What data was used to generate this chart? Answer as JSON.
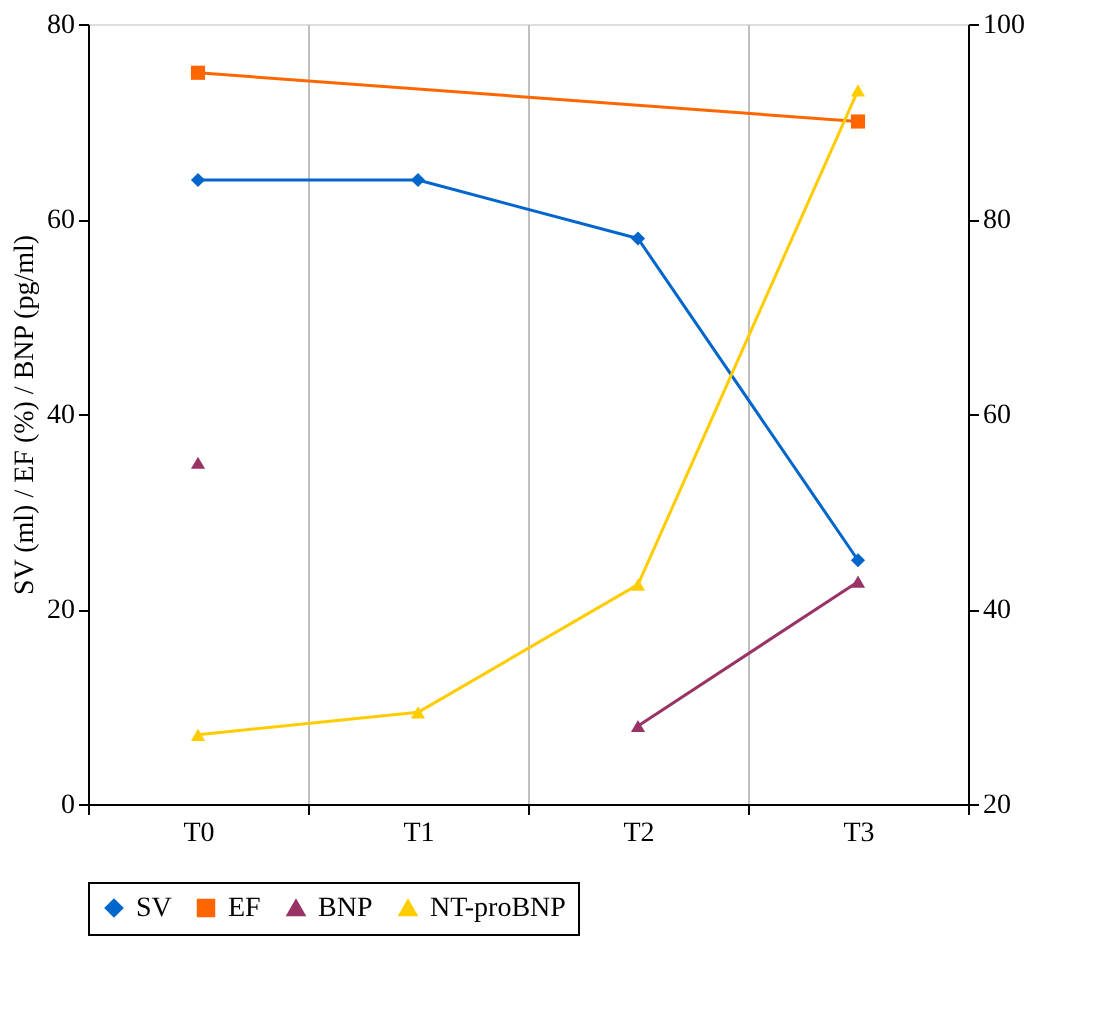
{
  "chart_data": {
    "type": "line",
    "ylabel": "SV (ml) / EF (%) / BNP (pg/ml)",
    "categories": [
      "T0",
      "T1",
      "T2",
      "T3"
    ],
    "series": [
      {
        "name": "SV",
        "color": "#0066cc",
        "marker": "diamond",
        "values": [
          64,
          64,
          58,
          25
        ]
      },
      {
        "name": "EF",
        "color": "#ff6600",
        "marker": "square",
        "x": [
          "T0",
          "T3"
        ],
        "values": [
          75,
          70
        ]
      },
      {
        "name": "BNP",
        "color": "#993366",
        "marker": "triangle",
        "values": [
          35,
          null,
          8,
          22.8
        ]
      },
      {
        "name": "NT-proBNP",
        "color": "#ffcc00",
        "marker": "triangle",
        "axis": "y2",
        "values": [
          27.1,
          29.4,
          42.5,
          93.2
        ]
      }
    ],
    "ylim": [
      0,
      80
    ],
    "yticks": [
      0,
      20,
      40,
      60,
      80
    ],
    "y2lim": [
      20,
      100
    ],
    "y2ticks": [
      20,
      40,
      60,
      80,
      100
    ],
    "grid": "x",
    "legend": "bottom",
    "line_style": "solid"
  }
}
